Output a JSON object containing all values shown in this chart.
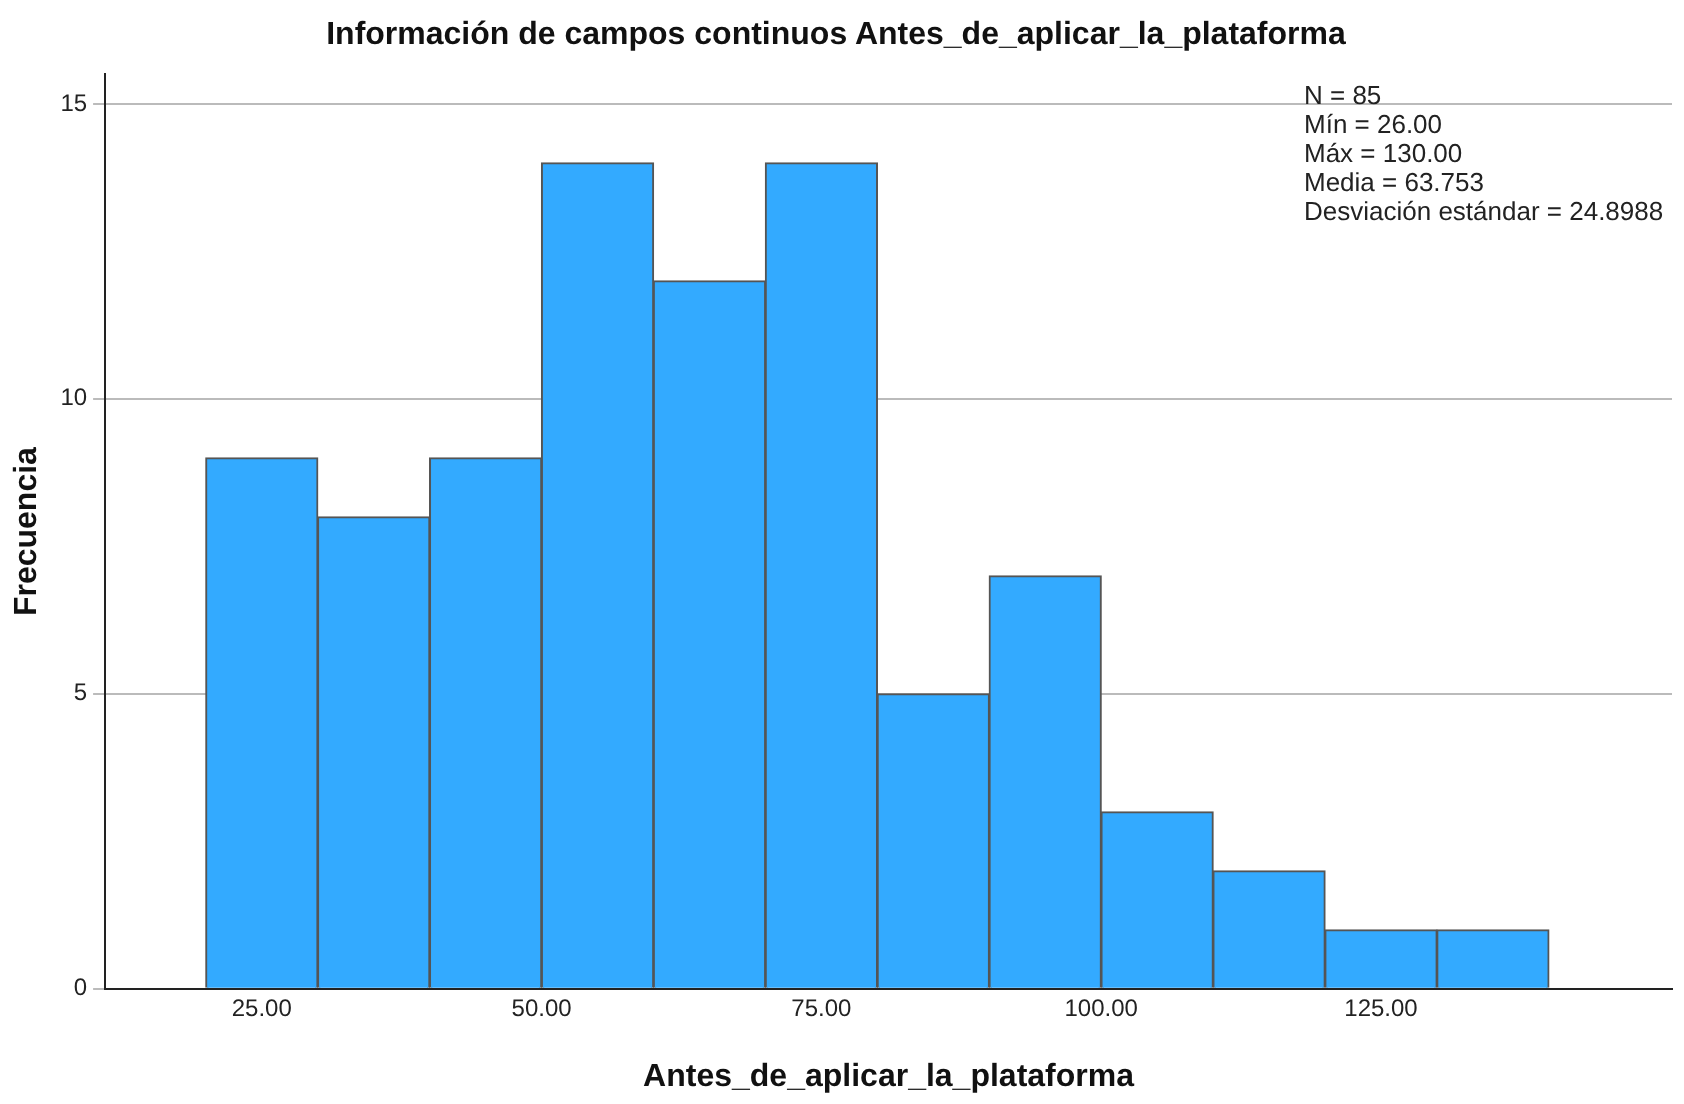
{
  "chart_data": {
    "type": "histogram",
    "title": "Información de campos continuos Antes_de_aplicar_la_plataforma",
    "xlabel": "Antes_de_aplicar_la_plataforma",
    "ylabel": "Frecuencia",
    "bins": [
      20,
      30,
      40,
      50,
      60,
      70,
      80,
      90,
      100,
      110,
      120,
      130,
      140
    ],
    "values": [
      9,
      8,
      9,
      14,
      12,
      14,
      5,
      7,
      3,
      2,
      1,
      1
    ],
    "color": "#33aaff",
    "xlim": [
      11,
      151
    ],
    "xticks": [
      {
        "value": 25,
        "label": "25.00"
      },
      {
        "value": 50,
        "label": "50.00"
      },
      {
        "value": 75,
        "label": "75.00"
      },
      {
        "value": 100,
        "label": "100.00"
      },
      {
        "value": 125,
        "label": "125.00"
      }
    ],
    "ylim": [
      0,
      15.5
    ],
    "yticks": [
      0,
      5,
      10,
      15
    ],
    "grid": "y",
    "legend": false,
    "annotations": [
      "N = 85",
      "Mín = 26.00",
      "Máx = 130.00",
      "Media = 63.753",
      "Desviación estándar = 24.8988"
    ]
  }
}
